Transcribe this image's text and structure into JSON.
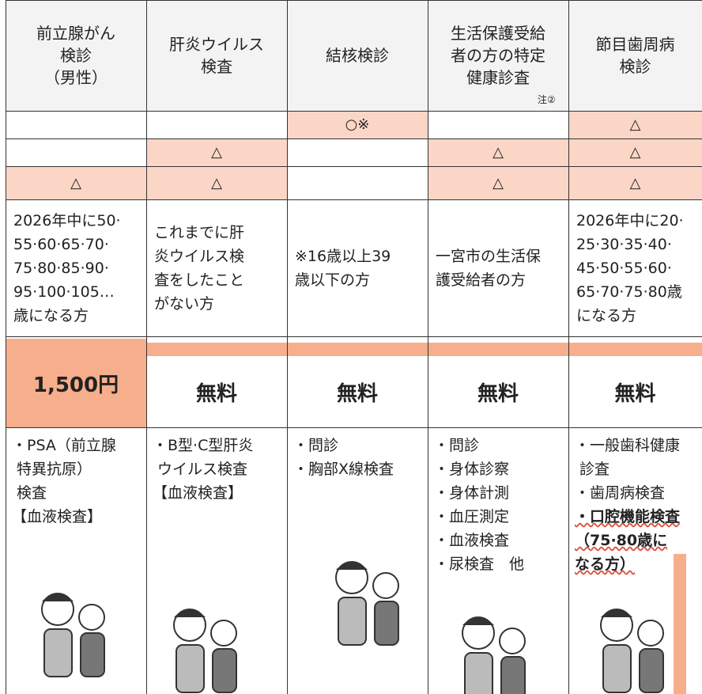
{
  "table": {
    "header": [
      "前立腺がん\n検診\n（男性）",
      "肝炎ウイルス\n検査",
      "結核検診",
      "生活保護受給\n者の方の特定\n健康診査",
      "節目歯周病\n検診"
    ],
    "header_note": "注②",
    "rows": [
      [
        null,
        null,
        "○※",
        null,
        "△"
      ],
      [
        null,
        "△",
        null,
        "△",
        "△"
      ],
      [
        "△",
        "△",
        null,
        "△",
        "△"
      ]
    ],
    "eligibility": [
      "2026年中に50·\n55·60·65·70·\n75·80·85·90·\n95·100·105…\n歳になる方",
      "これまでに肝\n炎ウイルス検\n査をしたこと\nがない方",
      "※16歳以上39\n歳以下の方",
      "一宮市の生活保\n護受給者の方",
      "2026年中に20·\n25·30·35·40·\n45·50·55·60·\n65·70·75·80歳\nになる方"
    ],
    "fees": [
      "1,500円",
      "無料",
      "無料",
      "無料",
      "無料"
    ],
    "contents": [
      [
        "・PSA（前立腺\n 特異抗原）\n 検査\n【血液検査】"
      ],
      [
        "・B型·C型肝炎\n ウイルス検査\n【血液検査】"
      ],
      [
        "・問診",
        "・胸部X線検査"
      ],
      [
        "・問診",
        "・身体診察",
        "・身体計測",
        "・血圧測定",
        "・血液検査",
        "・尿検査　他"
      ],
      [
        "・一般歯科健康\n 診査",
        "・歯周病検査",
        "・口腔機能検査\n（75·80歳に\nなる方）"
      ]
    ]
  }
}
